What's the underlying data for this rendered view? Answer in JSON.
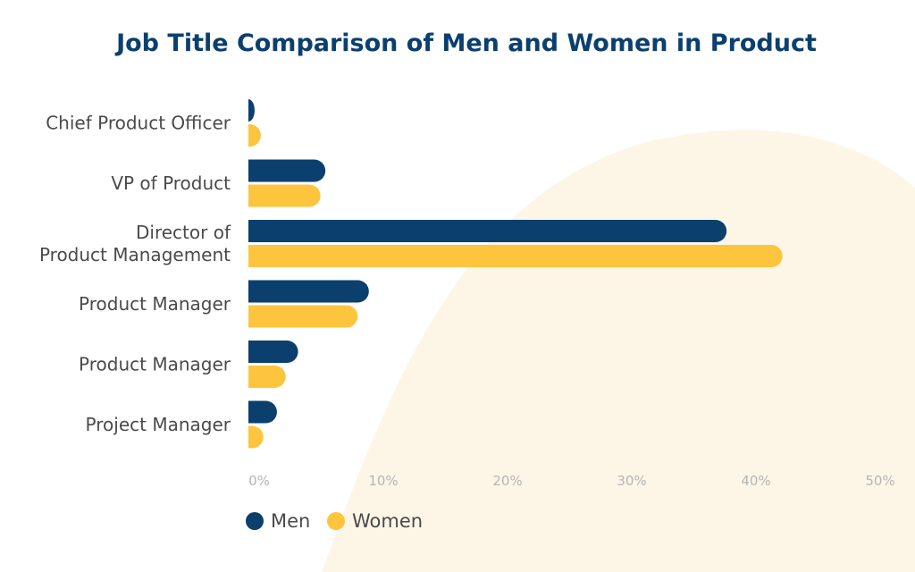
{
  "chart_data": {
    "type": "bar",
    "orientation": "horizontal",
    "title": "Job Title Comparison of Men and Women in Product",
    "categories": [
      [
        "Chief Product Officer"
      ],
      [
        "VP of Product"
      ],
      [
        "Director of",
        "Product Management"
      ],
      [
        "Product Manager"
      ],
      [
        "Product Manager"
      ],
      [
        "Project Manager"
      ]
    ],
    "series": [
      {
        "name": "Men",
        "color": "#0b3f6e",
        "values": [
          0.5,
          6.2,
          38.5,
          9.7,
          4.0,
          2.3
        ]
      },
      {
        "name": "Women",
        "color": "#fdc43e",
        "values": [
          1.0,
          5.8,
          43.0,
          8.8,
          3.0,
          1.2
        ]
      }
    ],
    "x_ticks": [
      "0%",
      "10%",
      "20%",
      "30%",
      "40%",
      "50%"
    ],
    "xlim": [
      0,
      50
    ],
    "grid": false,
    "legend_position": "bottom-left",
    "background_accent_color": "#fdf6e6"
  }
}
